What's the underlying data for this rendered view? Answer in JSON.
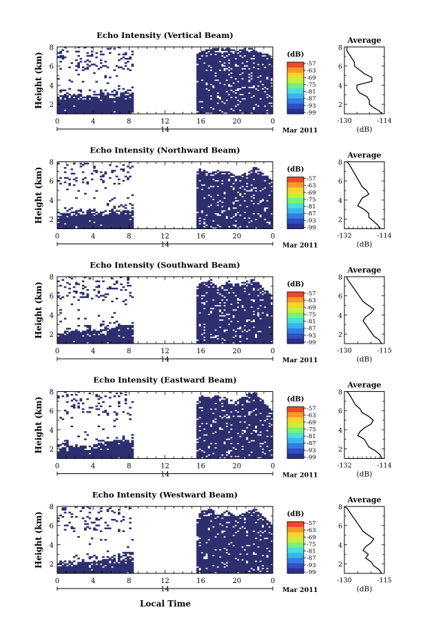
{
  "figure": {
    "colors": {
      "echo_fill": "#2d2f6e",
      "colormap": [
        "#2b2f8f",
        "#2f4fc2",
        "#2f7fe0",
        "#37b6f0",
        "#49e0d8",
        "#7af07a",
        "#c8f038",
        "#f5d42c",
        "#f59a2a",
        "#ea4a26"
      ]
    },
    "date_label": "Mar 2011",
    "day_label": "14",
    "bottom_xlabel": "Local Time",
    "average_title": "Average",
    "average_xlabel": "(dB)",
    "colorbar_unit": "(dB)"
  },
  "chart_data": [
    {
      "type": "heatmap",
      "title": "Echo Intensity (Vertical Beam)",
      "ylabel": "Height (km)",
      "xlabel": "Local Time",
      "x_ticks": [
        "0",
        "4",
        "8",
        "12",
        "16",
        "20",
        "0"
      ],
      "xlim": [
        0,
        24
      ],
      "y_ticks": [
        "2",
        "4",
        "6",
        "8"
      ],
      "ylim": [
        1,
        8
      ],
      "data_gap_hours": [
        8.5,
        15.5
      ],
      "colorbar": {
        "label": "(dB)",
        "ticks": [
          "-57",
          "-63",
          "-69",
          "-75",
          "-81",
          "-87",
          "-93",
          "-99"
        ]
      },
      "echo_top_km": {
        "hours": [
          0,
          1,
          2,
          3,
          4,
          5,
          6,
          7,
          8,
          8.4,
          15.6,
          16,
          17,
          18,
          19,
          20,
          21,
          22,
          23,
          24
        ],
        "values": [
          3.1,
          3.0,
          3.1,
          3.0,
          3.0,
          3.2,
          3.1,
          3.3,
          3.2,
          3.1,
          7.3,
          7.6,
          7.8,
          8.0,
          7.9,
          7.6,
          7.9,
          8.0,
          7.4,
          7.0
        ]
      },
      "average_profile": {
        "title": "Average",
        "xlabel": "(dB)",
        "x_ticks": [
          "-130",
          "-114"
        ],
        "xlim": [
          -130,
          -114
        ],
        "y_ticks": [
          "2",
          "4",
          "6",
          "8"
        ],
        "ylim": [
          1,
          8
        ],
        "heights_km": [
          1.0,
          1.3,
          1.6,
          2.0,
          2.4,
          2.8,
          3.2,
          3.6,
          4.0,
          4.4,
          4.8,
          5.2,
          5.6,
          6.0,
          6.4,
          6.8,
          7.2,
          7.6,
          8.0
        ],
        "values_db": [
          -115,
          -116,
          -118,
          -120,
          -120,
          -121,
          -124,
          -125,
          -125,
          -119,
          -119,
          -122,
          -124,
          -126,
          -126,
          -127,
          -128,
          -129,
          -129
        ]
      }
    },
    {
      "type": "heatmap",
      "title": "Echo Intensity (Northward Beam)",
      "ylabel": "Height (km)",
      "xlabel": "Local Time",
      "x_ticks": [
        "0",
        "4",
        "8",
        "12",
        "16",
        "20",
        "0"
      ],
      "xlim": [
        0,
        24
      ],
      "y_ticks": [
        "2",
        "4",
        "6",
        "8"
      ],
      "ylim": [
        1,
        8
      ],
      "data_gap_hours": [
        8.5,
        15.5
      ],
      "colorbar": {
        "label": "(dB)",
        "ticks": [
          "-57",
          "-63",
          "-69",
          "-75",
          "-81",
          "-87",
          "-93",
          "-99"
        ]
      },
      "echo_top_km": {
        "hours": [
          0,
          1,
          2,
          3,
          4,
          5,
          6,
          7,
          8,
          8.4,
          15.6,
          16,
          17,
          18,
          19,
          20,
          21,
          22,
          23,
          24
        ],
        "values": [
          2.5,
          2.6,
          2.9,
          3.0,
          2.9,
          2.8,
          3.0,
          2.9,
          3.0,
          3.0,
          7.0,
          7.4,
          6.8,
          7.2,
          7.0,
          6.5,
          7.0,
          7.5,
          6.8,
          6.0
        ]
      },
      "average_profile": {
        "title": "Average",
        "xlabel": "(dB)",
        "x_ticks": [
          "-132",
          "-114"
        ],
        "xlim": [
          -132,
          -114
        ],
        "y_ticks": [
          "2",
          "4",
          "6",
          "8"
        ],
        "ylim": [
          1,
          8
        ],
        "heights_km": [
          1.0,
          1.4,
          1.8,
          2.2,
          2.6,
          3.0,
          3.4,
          3.8,
          4.2,
          4.6,
          5.0,
          5.4,
          5.8,
          6.2,
          6.6,
          7.0,
          7.4,
          7.8,
          8.0
        ],
        "values_db": [
          -116,
          -117,
          -119,
          -121,
          -121,
          -123,
          -126,
          -125,
          -124,
          -121,
          -122,
          -124,
          -125,
          -126,
          -127,
          -128,
          -129,
          -130,
          -131
        ]
      }
    },
    {
      "type": "heatmap",
      "title": "Echo Intensity (Southward Beam)",
      "ylabel": "Height (km)",
      "xlabel": "Local Time",
      "x_ticks": [
        "0",
        "4",
        "8",
        "12",
        "16",
        "20",
        "0"
      ],
      "xlim": [
        0,
        24
      ],
      "y_ticks": [
        "2",
        "4",
        "6",
        "8"
      ],
      "ylim": [
        1,
        8
      ],
      "data_gap_hours": [
        8.5,
        15.5
      ],
      "colorbar": {
        "label": "(dB)",
        "ticks": [
          "-57",
          "-63",
          "-69",
          "-75",
          "-81",
          "-87",
          "-93",
          "-99"
        ]
      },
      "echo_top_km": {
        "hours": [
          0,
          1,
          2,
          3,
          4,
          5,
          6,
          7,
          8,
          8.4,
          15.6,
          16,
          17,
          18,
          19,
          20,
          21,
          22,
          23,
          24
        ],
        "values": [
          2.1,
          2.3,
          2.4,
          2.3,
          2.3,
          2.5,
          2.8,
          2.9,
          3.0,
          2.9,
          7.0,
          7.5,
          7.8,
          7.0,
          7.6,
          7.2,
          7.5,
          7.8,
          6.8,
          6.0
        ]
      },
      "average_profile": {
        "title": "Average",
        "xlabel": "(dB)",
        "x_ticks": [
          "-130",
          "-115"
        ],
        "xlim": [
          -130,
          -115
        ],
        "y_ticks": [
          "2",
          "4",
          "6",
          "8"
        ],
        "ylim": [
          1,
          8
        ],
        "heights_km": [
          1.0,
          1.4,
          1.8,
          2.2,
          2.6,
          3.0,
          3.4,
          3.8,
          4.2,
          4.6,
          5.0,
          5.4,
          5.8,
          6.2,
          6.6,
          7.0,
          7.4,
          7.8,
          8.0
        ],
        "values_db": [
          -116,
          -117,
          -119,
          -120,
          -121,
          -122,
          -123,
          -122,
          -120,
          -119,
          -121,
          -123,
          -124,
          -125,
          -126,
          -127,
          -128,
          -129,
          -129
        ]
      }
    },
    {
      "type": "heatmap",
      "title": "Echo Intensity (Eastward Beam)",
      "ylabel": "Height (km)",
      "xlabel": "Local Time",
      "x_ticks": [
        "0",
        "4",
        "8",
        "12",
        "16",
        "20",
        "0"
      ],
      "xlim": [
        0,
        24
      ],
      "y_ticks": [
        "2",
        "4",
        "6",
        "8"
      ],
      "ylim": [
        1,
        8
      ],
      "data_gap_hours": [
        8.5,
        15.5
      ],
      "colorbar": {
        "label": "(dB)",
        "ticks": [
          "-57",
          "-63",
          "-69",
          "-75",
          "-81",
          "-87",
          "-93",
          "-99"
        ]
      },
      "echo_top_km": {
        "hours": [
          0,
          1,
          2,
          3,
          4,
          5,
          6,
          7,
          8,
          8.4,
          15.6,
          16,
          17,
          18,
          19,
          20,
          21,
          22,
          23,
          24
        ],
        "values": [
          2.2,
          2.3,
          2.4,
          2.4,
          2.4,
          2.6,
          2.9,
          3.0,
          3.0,
          3.0,
          7.0,
          7.6,
          7.4,
          7.8,
          7.2,
          7.0,
          7.8,
          8.0,
          7.0,
          6.0
        ]
      },
      "average_profile": {
        "title": "Average",
        "xlabel": "(dB)",
        "x_ticks": [
          "-132",
          "-114"
        ],
        "xlim": [
          -132,
          -114
        ],
        "y_ticks": [
          "2",
          "4",
          "6",
          "8"
        ],
        "ylim": [
          1,
          8
        ],
        "heights_km": [
          1.0,
          1.4,
          1.8,
          2.2,
          2.6,
          3.0,
          3.4,
          3.8,
          4.2,
          4.6,
          5.0,
          5.4,
          5.8,
          6.2,
          6.6,
          7.0,
          7.4,
          7.8,
          8.0
        ],
        "values_db": [
          -115,
          -116,
          -118,
          -121,
          -122,
          -123,
          -126,
          -125,
          -123,
          -120,
          -119,
          -121,
          -124,
          -125,
          -127,
          -128,
          -129,
          -130,
          -131
        ]
      }
    },
    {
      "type": "heatmap",
      "title": "Echo Intensity (Westward Beam)",
      "ylabel": "Height (km)",
      "xlabel": "Local Time",
      "x_ticks": [
        "0",
        "4",
        "8",
        "12",
        "16",
        "20",
        "0"
      ],
      "xlim": [
        0,
        24
      ],
      "y_ticks": [
        "2",
        "4",
        "6",
        "8"
      ],
      "ylim": [
        1,
        8
      ],
      "data_gap_hours": [
        8.5,
        15.5
      ],
      "colorbar": {
        "label": "(dB)",
        "ticks": [
          "-57",
          "-63",
          "-69",
          "-75",
          "-81",
          "-87",
          "-93",
          "-99"
        ]
      },
      "echo_top_km": {
        "hours": [
          0,
          1,
          2,
          3,
          4,
          5,
          6,
          7,
          8,
          8.4,
          15.6,
          16,
          17,
          18,
          19,
          20,
          21,
          22,
          23,
          24
        ],
        "values": [
          2.1,
          2.3,
          2.3,
          2.2,
          2.3,
          2.4,
          2.6,
          2.7,
          2.7,
          2.7,
          7.0,
          7.6,
          7.8,
          7.2,
          7.6,
          7.0,
          7.4,
          7.8,
          7.0,
          6.0
        ]
      },
      "average_profile": {
        "title": "Average",
        "xlabel": "(dB)",
        "x_ticks": [
          "-130",
          "-115"
        ],
        "xlim": [
          -130,
          -115
        ],
        "y_ticks": [
          "2",
          "4",
          "6",
          "8"
        ],
        "ylim": [
          1,
          8
        ],
        "heights_km": [
          1.0,
          1.4,
          1.8,
          2.2,
          2.6,
          3.0,
          3.4,
          3.8,
          4.2,
          4.6,
          5.0,
          5.4,
          5.8,
          6.2,
          6.6,
          7.0,
          7.4,
          7.8,
          8.0
        ],
        "values_db": [
          -116,
          -117,
          -119,
          -120,
          -122,
          -121,
          -123,
          -122,
          -120,
          -119,
          -121,
          -123,
          -124,
          -125,
          -126,
          -127,
          -128,
          -129,
          -130
        ]
      }
    }
  ]
}
